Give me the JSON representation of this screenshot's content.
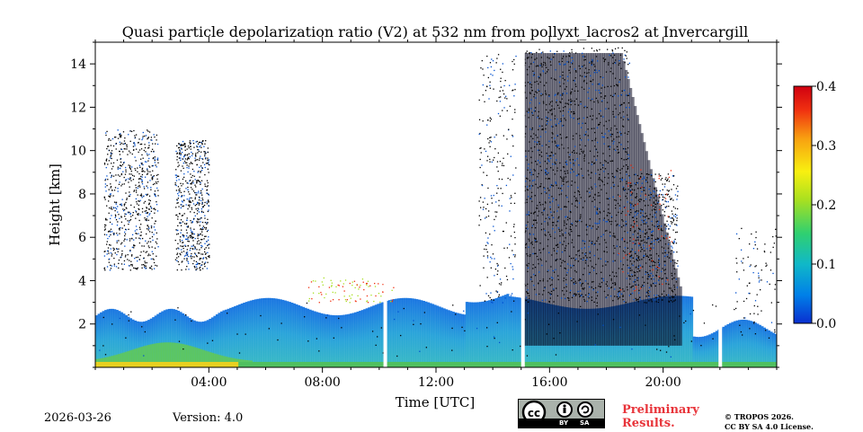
{
  "chart_data": {
    "type": "heatmap",
    "title": "Quasi particle depolarization ratio (V2) at 532 nm from pollyxt_lacros2 at Invercargill",
    "xlabel": "Time [UTC]",
    "ylabel": "Height [km]",
    "x_range_hours": [
      0,
      24
    ],
    "y_range_km": [
      0,
      15
    ],
    "x_ticks": [
      {
        "value": 4,
        "label": "04:00"
      },
      {
        "value": 8,
        "label": "08:00"
      },
      {
        "value": 12,
        "label": "12:00"
      },
      {
        "value": 16,
        "label": "16:00"
      },
      {
        "value": 20,
        "label": "20:00"
      }
    ],
    "y_ticks": [
      {
        "value": 2,
        "label": "2"
      },
      {
        "value": 4,
        "label": "4"
      },
      {
        "value": 6,
        "label": "6"
      },
      {
        "value": 8,
        "label": "8"
      },
      {
        "value": 10,
        "label": "10"
      },
      {
        "value": 12,
        "label": "12"
      },
      {
        "value": 14,
        "label": "14"
      }
    ],
    "colorbar": {
      "range": [
        0.0,
        0.4
      ],
      "ticks": [
        {
          "value": 0.0,
          "label": "0.0"
        },
        {
          "value": 0.1,
          "label": "0.1"
        },
        {
          "value": 0.2,
          "label": "0.2"
        },
        {
          "value": 0.3,
          "label": "0.3"
        },
        {
          "value": 0.4,
          "label": "0.4"
        }
      ],
      "colormap": [
        "#0a2fd0",
        "#0080e8",
        "#10b8c8",
        "#30d070",
        "#a8e020",
        "#f8f010",
        "#f8a010",
        "#f03010",
        "#d00010"
      ]
    },
    "data_gaps_hours": [
      10.15,
      15.0,
      21.95
    ]
  },
  "footer": {
    "date": "2026-03-26",
    "version": "Version: 4.0",
    "cc_by": "BY",
    "cc_sa": "SA",
    "preliminary_line1": "Preliminary",
    "preliminary_line2": "Results.",
    "copyright_line1": "© TROPOS 2026.",
    "copyright_line2": "CC BY SA 4.0 License."
  },
  "colors": {
    "preliminary": "#e8343a",
    "background": "#ffffff"
  }
}
